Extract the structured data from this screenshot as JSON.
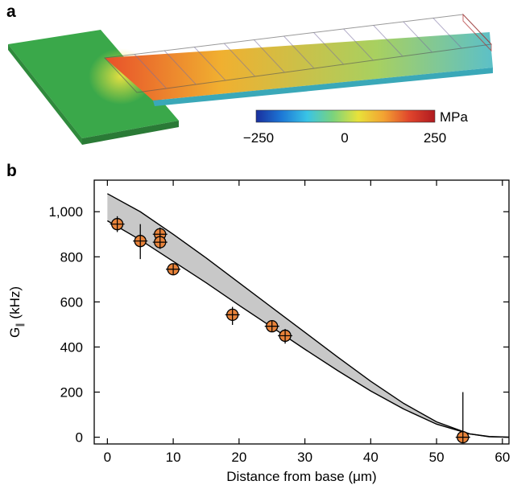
{
  "panels": {
    "a": {
      "letter": "a"
    },
    "b": {
      "letter": "b"
    }
  },
  "colorbar": {
    "unit": "MPa",
    "ticks": [
      "−250",
      "0",
      "250"
    ],
    "colors": [
      "#1a2f9e",
      "#1d78d6",
      "#39c4e6",
      "#7ad37d",
      "#e8e23a",
      "#f3a232",
      "#e0452c",
      "#b01a20"
    ]
  },
  "cantilever_colors": {
    "base": "#3aa84a",
    "hot": "#e8502a",
    "mid": "#f0b030",
    "cool": "#5cc0c8"
  },
  "chart_data": {
    "type": "scatter",
    "xlabel": "Distance from base (μm)",
    "ylabel": "G∥ (kHz)",
    "ylabel_main": "G",
    "ylabel_sub": "∥",
    "ylabel_rest": " (kHz)",
    "xlim": [
      -2,
      61
    ],
    "ylim": [
      -30,
      1140
    ],
    "xticks": [
      0,
      10,
      20,
      30,
      40,
      50,
      60
    ],
    "xtick_labels": [
      "0",
      "10",
      "20",
      "30",
      "40",
      "50",
      "60"
    ],
    "yticks": [
      0,
      200,
      400,
      600,
      800,
      1000
    ],
    "ytick_labels": [
      "0",
      "200",
      "400",
      "600",
      "800",
      "1,000"
    ],
    "grid": false,
    "marker_color": "#e8833a",
    "band_color": "#c8c8c8",
    "points": [
      {
        "x": 1.5,
        "y": 945,
        "yerr_low": 35,
        "yerr_high": 35
      },
      {
        "x": 5,
        "y": 870,
        "yerr_low": 80,
        "yerr_high": 75
      },
      {
        "x": 8,
        "y": 900,
        "yerr_low": 30,
        "yerr_high": 30
      },
      {
        "x": 8,
        "y": 865,
        "yerr_low": 30,
        "yerr_high": 30
      },
      {
        "x": 10,
        "y": 745,
        "yerr_low": 20,
        "yerr_high": 20
      },
      {
        "x": 19,
        "y": 543,
        "yerr_low": 45,
        "yerr_high": 35
      },
      {
        "x": 25,
        "y": 492,
        "yerr_low": 15,
        "yerr_high": 15
      },
      {
        "x": 27,
        "y": 450,
        "yerr_low": 35,
        "yerr_high": 30
      },
      {
        "x": 54,
        "y": 0,
        "yerr_low": 0,
        "yerr_high": 200
      }
    ],
    "band_upper": [
      [
        0,
        1080
      ],
      [
        5,
        1000
      ],
      [
        10,
        900
      ],
      [
        15,
        795
      ],
      [
        20,
        685
      ],
      [
        25,
        575
      ],
      [
        30,
        465
      ],
      [
        35,
        355
      ],
      [
        40,
        248
      ],
      [
        45,
        150
      ],
      [
        50,
        68
      ],
      [
        55,
        15
      ],
      [
        58,
        2
      ],
      [
        61,
        0
      ]
    ],
    "band_lower": [
      [
        0,
        960
      ],
      [
        5,
        875
      ],
      [
        10,
        780
      ],
      [
        15,
        685
      ],
      [
        20,
        585
      ],
      [
        25,
        488
      ],
      [
        30,
        390
      ],
      [
        35,
        295
      ],
      [
        40,
        205
      ],
      [
        45,
        125
      ],
      [
        50,
        58
      ],
      [
        55,
        15
      ],
      [
        58,
        3
      ],
      [
        61,
        0
      ]
    ]
  }
}
